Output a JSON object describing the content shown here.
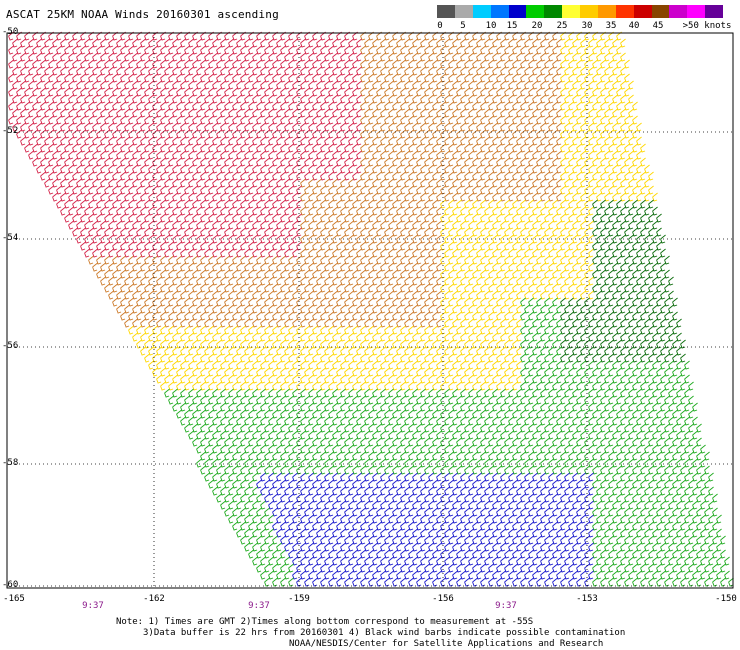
{
  "title": "ASCAT 25KM NOAA Winds 20160301  ascending",
  "legend": {
    "labels": [
      "0",
      "5",
      "10",
      "15",
      "20",
      "25",
      "30",
      "35",
      "40",
      "45",
      ">50 knots"
    ],
    "colors": [
      "#555555",
      "#aaaaaa",
      "#00ccff",
      "#0077ff",
      "#0000cc",
      "#00cc00",
      "#008800",
      "#ffff33",
      "#ffcc00",
      "#ff9900",
      "#ff3300",
      "#cc0000",
      "#884400",
      "#cc00cc",
      "#ff00ff",
      "#660099"
    ]
  },
  "axes": {
    "lat_labels": [
      "-50",
      "-52",
      "-54",
      "-56",
      "-58",
      "-60"
    ],
    "lon_labels": [
      "-165",
      "-162",
      "-159",
      "-156",
      "-153",
      "-150"
    ]
  },
  "times": [
    "9:37",
    "9:37",
    "9:37"
  ],
  "notes": {
    "line1": "Note: 1) Times are GMT 2)Times along bottom correspond to measurement at -55S",
    "line2": "3)Data buffer is 22 hrs from 20160301 4) Black wind barbs indicate possible contamination",
    "line3": "NOAA/NESDIS/Center for Satellite Applications and Research"
  },
  "wind_regions": [
    {
      "color": "#d4244a",
      "name": "strong-red"
    },
    {
      "color": "#cc7a2a",
      "name": "orange"
    },
    {
      "color": "#ffd700",
      "name": "yellow"
    },
    {
      "color": "#1faa1f",
      "name": "green"
    },
    {
      "color": "#0b6b0b",
      "name": "dark-green"
    },
    {
      "color": "#1a1acc",
      "name": "blue"
    }
  ]
}
